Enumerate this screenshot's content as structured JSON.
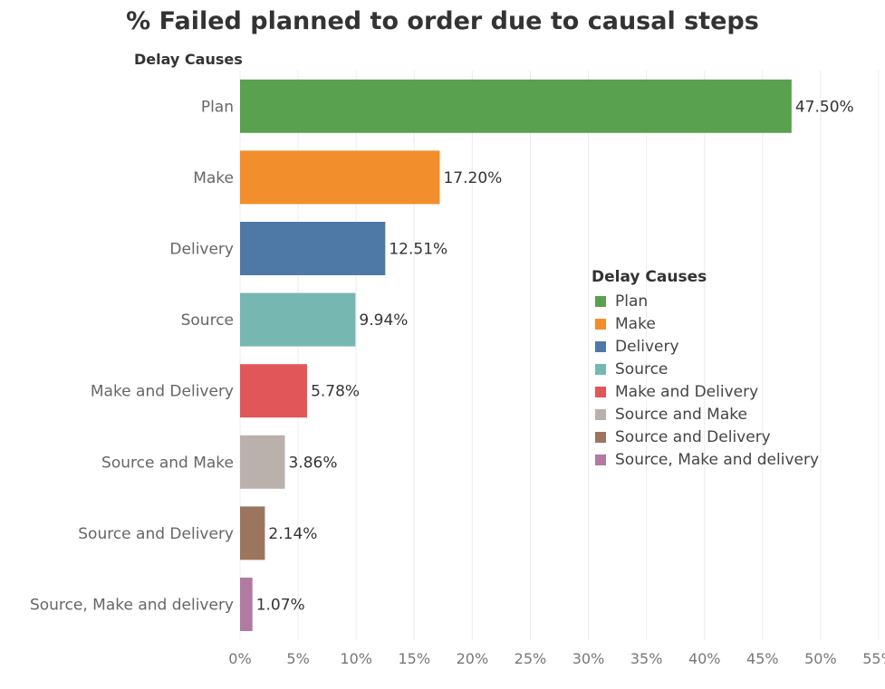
{
  "chart_data": {
    "type": "bar",
    "orientation": "horizontal",
    "title": "% Failed planned to order due to causal  steps",
    "ylabel": "Delay Causes",
    "xlabel": "",
    "categories": [
      "Plan",
      "Make",
      "Delivery",
      "Source",
      "Make and Delivery",
      "Source and Make",
      "Source and Delivery",
      "Source, Make and delivery"
    ],
    "values": [
      47.5,
      17.2,
      12.51,
      9.94,
      5.78,
      3.86,
      2.14,
      1.07
    ],
    "value_labels": [
      "47.50%",
      "17.20%",
      "12.51%",
      "9.94%",
      "5.78%",
      "3.86%",
      "2.14%",
      "1.07%"
    ],
    "colors": [
      "#59a14f",
      "#f28e2b",
      "#4e79a7",
      "#76b7b2",
      "#e15759",
      "#bab0ac",
      "#9c755f",
      "#b07aa1"
    ],
    "xlim": [
      0,
      55
    ],
    "xticks": [
      0,
      5,
      10,
      15,
      20,
      25,
      30,
      35,
      40,
      45,
      50,
      55
    ],
    "xtick_labels": [
      "0%",
      "5%",
      "10%",
      "15%",
      "20%",
      "25%",
      "30%",
      "35%",
      "40%",
      "45%",
      "50%",
      "55%"
    ],
    "grid": true,
    "legend": {
      "title": "Delay Causes",
      "placement": "right",
      "entries": [
        "Plan",
        "Make",
        "Delivery",
        "Source",
        "Make and Delivery",
        "Source and Make",
        "Source and Delivery",
        "Source, Make and delivery"
      ]
    }
  }
}
